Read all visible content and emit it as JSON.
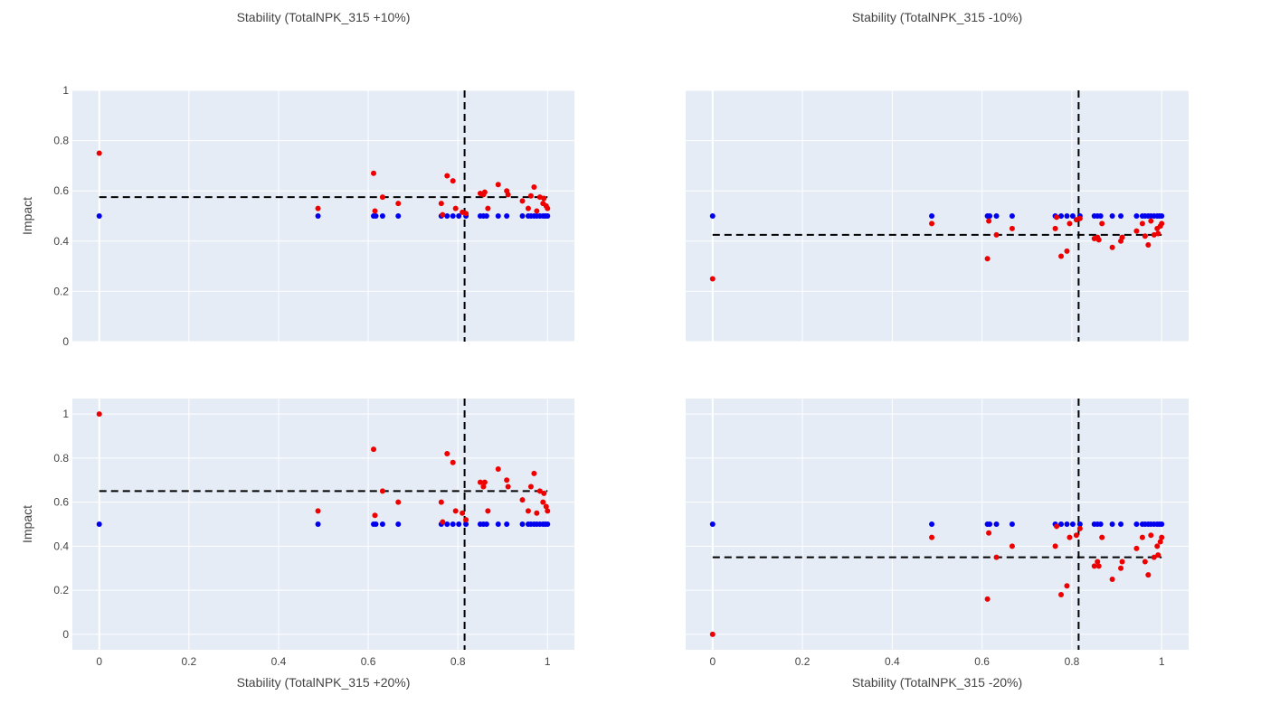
{
  "chart_data": [
    {
      "type": "scatter",
      "title": "Stability (TotalNPK_315 +10%)",
      "xlabel": "",
      "ylabel": "Impact",
      "xlim": [
        -0.06,
        1.06
      ],
      "ylim": [
        0,
        1
      ],
      "xticks": [],
      "yticks": [
        "0",
        "0.2",
        "0.4",
        "0.6",
        "0.8",
        "1"
      ],
      "grid": true,
      "hline": 0.575,
      "vline": 0.815,
      "series": [
        {
          "color": "#0000ee",
          "x": [
            0,
            0.488,
            0.612,
            0.617,
            0.632,
            0.667,
            0.763,
            0.776,
            0.789,
            0.802,
            0.818,
            0.85,
            0.857,
            0.864,
            0.89,
            0.909,
            0.944,
            0.957,
            0.963,
            0.97,
            0.976,
            0.983,
            0.99,
            0.995,
            1.0
          ],
          "y": [
            0.5,
            0.5,
            0.5,
            0.5,
            0.5,
            0.5,
            0.5,
            0.5,
            0.5,
            0.5,
            0.5,
            0.5,
            0.5,
            0.5,
            0.5,
            0.5,
            0.5,
            0.5,
            0.5,
            0.5,
            0.5,
            0.5,
            0.5,
            0.5,
            0.5
          ]
        },
        {
          "color": "#ee0000",
          "x": [
            0,
            0.488,
            0.612,
            0.615,
            0.632,
            0.667,
            0.763,
            0.766,
            0.776,
            0.789,
            0.795,
            0.81,
            0.818,
            0.85,
            0.857,
            0.86,
            0.867,
            0.89,
            0.909,
            0.912,
            0.944,
            0.957,
            0.963,
            0.97,
            0.976,
            0.983,
            0.99,
            0.992,
            0.997,
            1.0
          ],
          "y": [
            0.75,
            0.53,
            0.67,
            0.52,
            0.575,
            0.55,
            0.55,
            0.505,
            0.66,
            0.64,
            0.53,
            0.515,
            0.51,
            0.59,
            0.585,
            0.595,
            0.53,
            0.625,
            0.6,
            0.585,
            0.56,
            0.53,
            0.58,
            0.615,
            0.52,
            0.575,
            0.55,
            0.57,
            0.54,
            0.53
          ]
        }
      ]
    },
    {
      "type": "scatter",
      "title": "Stability (TotalNPK_315 -10%)",
      "xlabel": "",
      "ylabel": "",
      "xlim": [
        -0.06,
        1.06
      ],
      "ylim": [
        0,
        1
      ],
      "xticks": [],
      "yticks": [],
      "grid": true,
      "hline": 0.425,
      "vline": 0.815,
      "series": [
        {
          "color": "#0000ee",
          "x": [
            0,
            0.488,
            0.612,
            0.617,
            0.632,
            0.667,
            0.763,
            0.776,
            0.789,
            0.802,
            0.818,
            0.85,
            0.857,
            0.864,
            0.89,
            0.909,
            0.944,
            0.957,
            0.963,
            0.97,
            0.976,
            0.983,
            0.99,
            0.995,
            1.0
          ],
          "y": [
            0.5,
            0.5,
            0.5,
            0.5,
            0.5,
            0.5,
            0.5,
            0.5,
            0.5,
            0.5,
            0.5,
            0.5,
            0.5,
            0.5,
            0.5,
            0.5,
            0.5,
            0.5,
            0.5,
            0.5,
            0.5,
            0.5,
            0.5,
            0.5,
            0.5
          ]
        },
        {
          "color": "#ee0000",
          "x": [
            0,
            0.488,
            0.612,
            0.615,
            0.632,
            0.667,
            0.763,
            0.766,
            0.776,
            0.789,
            0.795,
            0.81,
            0.818,
            0.85,
            0.857,
            0.86,
            0.867,
            0.89,
            0.909,
            0.912,
            0.944,
            0.957,
            0.963,
            0.97,
            0.976,
            0.983,
            0.99,
            0.992,
            0.997,
            1.0
          ],
          "y": [
            0.25,
            0.47,
            0.33,
            0.48,
            0.425,
            0.45,
            0.45,
            0.495,
            0.34,
            0.36,
            0.47,
            0.485,
            0.49,
            0.41,
            0.415,
            0.405,
            0.47,
            0.375,
            0.4,
            0.415,
            0.44,
            0.47,
            0.42,
            0.385,
            0.48,
            0.425,
            0.45,
            0.43,
            0.46,
            0.47
          ]
        }
      ]
    },
    {
      "type": "scatter",
      "title": "",
      "xlabel": "Stability (TotalNPK_315 +20%)",
      "ylabel": "Impact",
      "xlim": [
        -0.06,
        1.06
      ],
      "ylim": [
        -0.07,
        1.07
      ],
      "xticks": [
        "0",
        "0.2",
        "0.4",
        "0.6",
        "0.8",
        "1"
      ],
      "yticks": [
        "0",
        "0.2",
        "0.4",
        "0.6",
        "0.8",
        "1"
      ],
      "grid": true,
      "hline": 0.65,
      "vline": 0.815,
      "series": [
        {
          "color": "#0000ee",
          "x": [
            0,
            0.488,
            0.612,
            0.617,
            0.632,
            0.667,
            0.763,
            0.776,
            0.789,
            0.802,
            0.818,
            0.85,
            0.857,
            0.864,
            0.89,
            0.909,
            0.944,
            0.957,
            0.963,
            0.97,
            0.976,
            0.983,
            0.99,
            0.995,
            1.0
          ],
          "y": [
            0.5,
            0.5,
            0.5,
            0.5,
            0.5,
            0.5,
            0.5,
            0.5,
            0.5,
            0.5,
            0.5,
            0.5,
            0.5,
            0.5,
            0.5,
            0.5,
            0.5,
            0.5,
            0.5,
            0.5,
            0.5,
            0.5,
            0.5,
            0.5,
            0.5
          ]
        },
        {
          "color": "#ee0000",
          "x": [
            0,
            0.488,
            0.612,
            0.615,
            0.632,
            0.667,
            0.763,
            0.766,
            0.776,
            0.789,
            0.795,
            0.81,
            0.818,
            0.85,
            0.857,
            0.86,
            0.867,
            0.89,
            0.909,
            0.912,
            0.944,
            0.957,
            0.963,
            0.97,
            0.976,
            0.983,
            0.99,
            0.992,
            0.997,
            1.0
          ],
          "y": [
            1.0,
            0.56,
            0.84,
            0.54,
            0.65,
            0.6,
            0.6,
            0.51,
            0.82,
            0.78,
            0.56,
            0.55,
            0.52,
            0.69,
            0.67,
            0.69,
            0.56,
            0.75,
            0.7,
            0.67,
            0.61,
            0.56,
            0.67,
            0.73,
            0.55,
            0.65,
            0.6,
            0.64,
            0.58,
            0.56
          ]
        }
      ]
    },
    {
      "type": "scatter",
      "title": "",
      "xlabel": "Stability (TotalNPK_315 -20%)",
      "ylabel": "",
      "xlim": [
        -0.06,
        1.06
      ],
      "ylim": [
        -0.07,
        1.07
      ],
      "xticks": [
        "0",
        "0.2",
        "0.4",
        "0.6",
        "0.8",
        "1"
      ],
      "yticks": [],
      "grid": true,
      "hline": 0.35,
      "vline": 0.815,
      "series": [
        {
          "color": "#0000ee",
          "x": [
            0,
            0.488,
            0.612,
            0.617,
            0.632,
            0.667,
            0.763,
            0.776,
            0.789,
            0.802,
            0.818,
            0.85,
            0.857,
            0.864,
            0.89,
            0.909,
            0.944,
            0.957,
            0.963,
            0.97,
            0.976,
            0.983,
            0.99,
            0.995,
            1.0
          ],
          "y": [
            0.5,
            0.5,
            0.5,
            0.5,
            0.5,
            0.5,
            0.5,
            0.5,
            0.5,
            0.5,
            0.5,
            0.5,
            0.5,
            0.5,
            0.5,
            0.5,
            0.5,
            0.5,
            0.5,
            0.5,
            0.5,
            0.5,
            0.5,
            0.5,
            0.5
          ]
        },
        {
          "color": "#ee0000",
          "x": [
            0,
            0.488,
            0.612,
            0.615,
            0.632,
            0.667,
            0.763,
            0.766,
            0.776,
            0.789,
            0.795,
            0.81,
            0.818,
            0.85,
            0.857,
            0.86,
            0.867,
            0.89,
            0.909,
            0.912,
            0.944,
            0.957,
            0.963,
            0.97,
            0.976,
            0.983,
            0.99,
            0.992,
            0.997,
            1.0
          ],
          "y": [
            0.0,
            0.44,
            0.16,
            0.46,
            0.35,
            0.4,
            0.4,
            0.49,
            0.18,
            0.22,
            0.44,
            0.45,
            0.48,
            0.31,
            0.33,
            0.31,
            0.44,
            0.25,
            0.3,
            0.33,
            0.39,
            0.44,
            0.33,
            0.27,
            0.45,
            0.35,
            0.4,
            0.36,
            0.42,
            0.44
          ]
        }
      ]
    }
  ]
}
